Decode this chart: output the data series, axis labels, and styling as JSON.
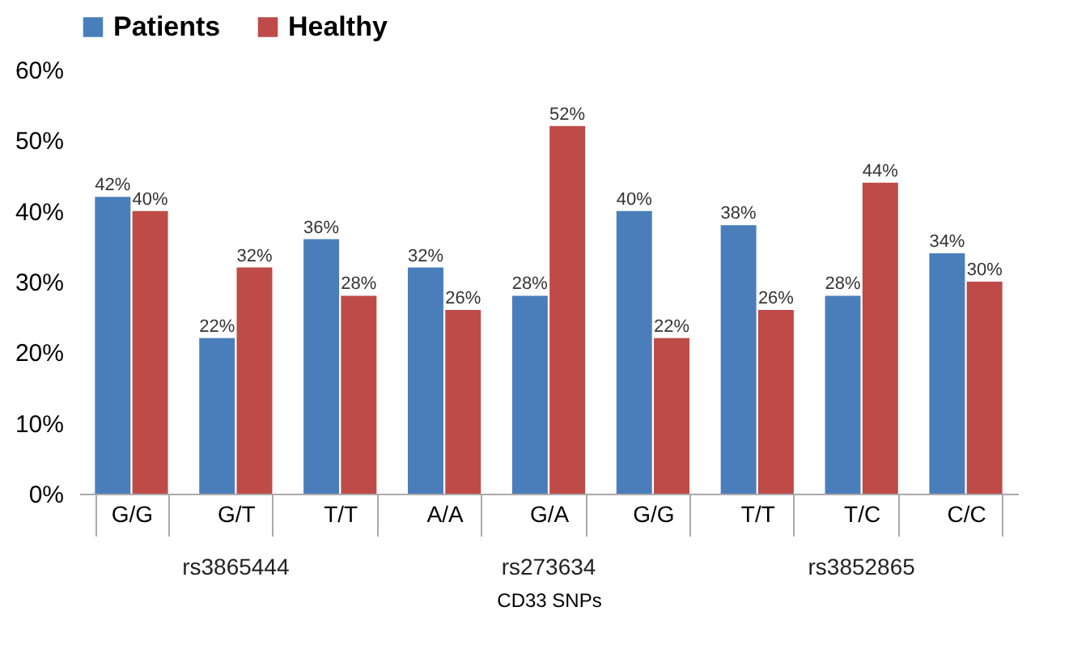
{
  "chart_data": {
    "type": "bar",
    "xlabel": "CD33 SNPs",
    "categories": [
      "G/G",
      "G/T",
      "T/T",
      "A/A",
      "G/A",
      "G/G",
      "T/T",
      "T/C",
      "C/C"
    ],
    "series": [
      {
        "name": "Patients",
        "color": "#4a7ebb",
        "values": [
          42,
          22,
          36,
          32,
          28,
          40,
          38,
          28,
          34
        ],
        "value_labels": [
          "42%",
          "22%",
          "36%",
          "32%",
          "28%",
          "40%",
          "38%",
          "28%",
          "34%"
        ]
      },
      {
        "name": "Healthy",
        "color": "#be4b48",
        "values": [
          40,
          32,
          28,
          26,
          52,
          22,
          26,
          44,
          30
        ],
        "value_labels": [
          "40%",
          "32%",
          "28%",
          "26%",
          "52%",
          "22%",
          "26%",
          "44%",
          "30%"
        ]
      }
    ],
    "ylim": [
      0,
      60
    ],
    "yticks": [
      {
        "value": 0,
        "label": "0%"
      },
      {
        "value": 10,
        "label": "10%"
      },
      {
        "value": 20,
        "label": "20%"
      },
      {
        "value": 30,
        "label": "30%"
      },
      {
        "value": 40,
        "label": "40%"
      },
      {
        "value": 50,
        "label": "50%"
      },
      {
        "value": 60,
        "label": "60%"
      }
    ],
    "annotations": [
      "rs3865444",
      "rs273634",
      "rs3852865"
    ],
    "legend": "top"
  }
}
